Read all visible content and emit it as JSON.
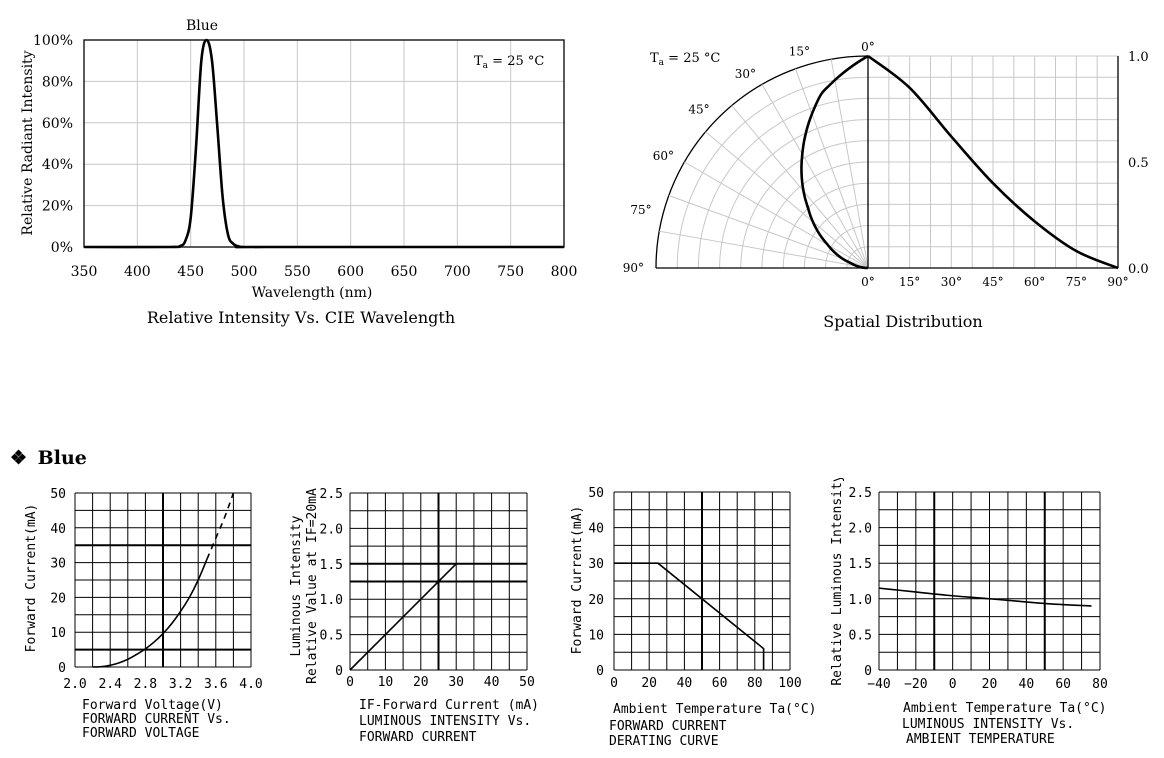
{
  "section": {
    "bullet": "❖",
    "title": "Blue"
  },
  "chart_data": [
    {
      "id": "spectrum",
      "type": "line",
      "title": "Relative Intensity Vs. CIE Wavelength",
      "series_label": "Blue",
      "condition_prefix": "T",
      "condition_sub": "a",
      "condition_suffix": " = 25 °C",
      "xlabel": "Wavelength (nm)",
      "ylabel": "Relative Radiant Intensity",
      "xlim": [
        350,
        800
      ],
      "ylim": [
        0,
        100
      ],
      "xticks": [
        "350",
        "400",
        "450",
        "500",
        "550",
        "600",
        "650",
        "700",
        "750",
        "800"
      ],
      "yticks": [
        "0%",
        "20%",
        "40%",
        "60%",
        "80%",
        "100%"
      ],
      "x": [
        350,
        430,
        440,
        445,
        450,
        455,
        460,
        465,
        470,
        475,
        480,
        485,
        490,
        495,
        500,
        520,
        800
      ],
      "y": [
        0,
        0,
        0.5,
        3,
        14,
        48,
        90,
        100,
        90,
        58,
        24,
        6,
        1.5,
        0.3,
        0,
        0,
        0
      ]
    },
    {
      "id": "spatial",
      "type": "polar",
      "title": "Spatial Distribution",
      "condition_prefix": "T",
      "condition_sub": "a",
      "condition_suffix": " = 25 °C",
      "angle_labels": [
        "0°",
        "15°",
        "30°",
        "45°",
        "60°",
        "75°",
        "90°"
      ],
      "bottom_labels": [
        "0°",
        "15°",
        "30°",
        "45°",
        "60°",
        "75°",
        "90°"
      ],
      "right_labels": [
        "1.0",
        "0.5",
        "0.0"
      ],
      "angles_deg": [
        0,
        15,
        30,
        45,
        60,
        75,
        90
      ],
      "relative_intensity": [
        1.0,
        0.85,
        0.62,
        0.4,
        0.22,
        0.08,
        0.0
      ]
    },
    {
      "id": "iv",
      "type": "line",
      "ylabel": "Forward Current(mA)",
      "xlabel": "Forward Voltage(V)",
      "caption_lines": [
        "FORWARD CURRENT Vs.",
        "FORWARD VOLTAGE"
      ],
      "xlim": [
        2.0,
        4.0
      ],
      "ylim": [
        0,
        50
      ],
      "xticks": [
        "2.0",
        "2.4",
        "2.8",
        "3.2",
        "3.6",
        "4.0"
      ],
      "yticks": [
        "0",
        "10",
        "20",
        "30",
        "40",
        "50"
      ],
      "x": [
        2.2,
        2.3,
        2.4,
        2.5,
        2.6,
        2.7,
        2.8,
        2.9,
        3.0,
        3.1,
        3.2,
        3.3,
        3.4,
        3.5,
        3.6,
        3.7,
        3.8
      ],
      "y": [
        0,
        0.1,
        0.5,
        1.2,
        2.2,
        3.6,
        5.2,
        7.2,
        9.6,
        12.5,
        16,
        20,
        25,
        31,
        37,
        43,
        50
      ],
      "dashed_from_x": 3.55
    },
    {
      "id": "lum_current",
      "type": "line",
      "ylabel_line1": "Luminous Intensity",
      "ylabel_line2": "Relative Value at IF=20mA",
      "xlabel": "IF-Forward Current (mA)",
      "caption_lines": [
        "LUMINOUS INTENSITY Vs.",
        "FORWARD CURRENT"
      ],
      "xlim": [
        0,
        50
      ],
      "ylim": [
        0,
        2.5
      ],
      "xticks": [
        "0",
        "10",
        "20",
        "30",
        "40",
        "50"
      ],
      "yticks": [
        "0",
        "0.5",
        "1.0",
        "1.5",
        "2.0",
        "2.5"
      ],
      "x": [
        0,
        30
      ],
      "y": [
        0,
        1.5
      ]
    },
    {
      "id": "derating",
      "type": "line",
      "ylabel": "Forward Current(mA)",
      "xlabel": "Ambient Temperature Ta(°C)",
      "caption_lines": [
        "FORWARD CURRENT",
        "DERATING CURVE"
      ],
      "xlim": [
        0,
        100
      ],
      "ylim": [
        0,
        50
      ],
      "xticks": [
        "0",
        "20",
        "40",
        "60",
        "80",
        "100"
      ],
      "yticks": [
        "0",
        "10",
        "20",
        "30",
        "40",
        "50"
      ],
      "x": [
        0,
        25,
        85,
        85
      ],
      "y": [
        30,
        30,
        6,
        0
      ]
    },
    {
      "id": "lum_temp",
      "type": "line",
      "ylabel": "Relative Luminous Intensity",
      "xlabel": "Ambient Temperature Ta(°C)",
      "caption_lines": [
        "LUMINOUS INTENSITY Vs.",
        "AMBIENT TEMPERATURE"
      ],
      "xlim": [
        -40,
        90
      ],
      "ylim": [
        0,
        2.5
      ],
      "xticks": [
        "−40",
        "−20",
        "0",
        "20",
        "40",
        "60",
        "80"
      ],
      "yticks": [
        "0",
        "0.5",
        "1.0",
        "1.5",
        "2.0",
        "2.5"
      ],
      "x": [
        -40,
        -20,
        0,
        20,
        40,
        60,
        85
      ],
      "y": [
        1.15,
        1.1,
        1.05,
        1.01,
        0.97,
        0.93,
        0.9
      ]
    }
  ]
}
